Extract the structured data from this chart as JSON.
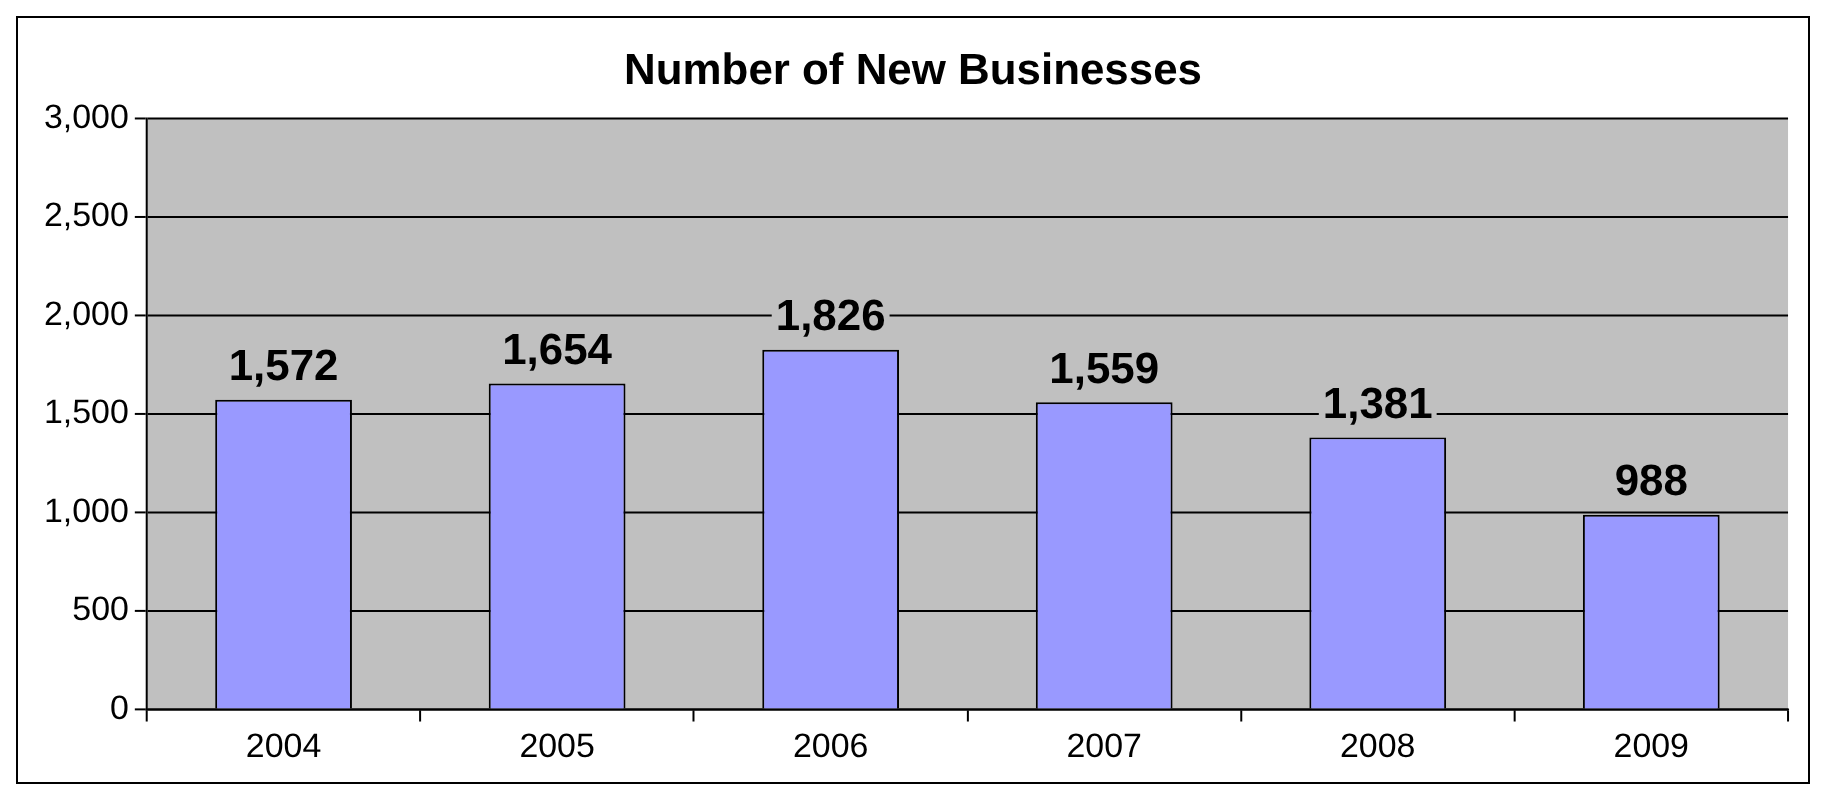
{
  "chart_data": {
    "type": "bar",
    "title": "Number of New Businesses",
    "categories": [
      "2004",
      "2005",
      "2006",
      "2007",
      "2008",
      "2009"
    ],
    "values": [
      1572,
      1654,
      1826,
      1559,
      1381,
      988
    ],
    "color": "#9999ff",
    "ylim": [
      0,
      3000
    ],
    "yticks": [
      0,
      500,
      {
        "value": 1000,
        "label": "1,000"
      },
      {
        "value": 1500,
        "label": "1,500"
      },
      {
        "value": 2000,
        "label": "2,000"
      },
      {
        "value": 2500,
        "label": "2,500"
      },
      {
        "value": 3000,
        "label": "3,000"
      }
    ],
    "value_labels": [
      "1,572",
      "1,654",
      "1,826",
      "1,559",
      "1,381",
      "988"
    ],
    "grid": "y",
    "legend": false
  }
}
